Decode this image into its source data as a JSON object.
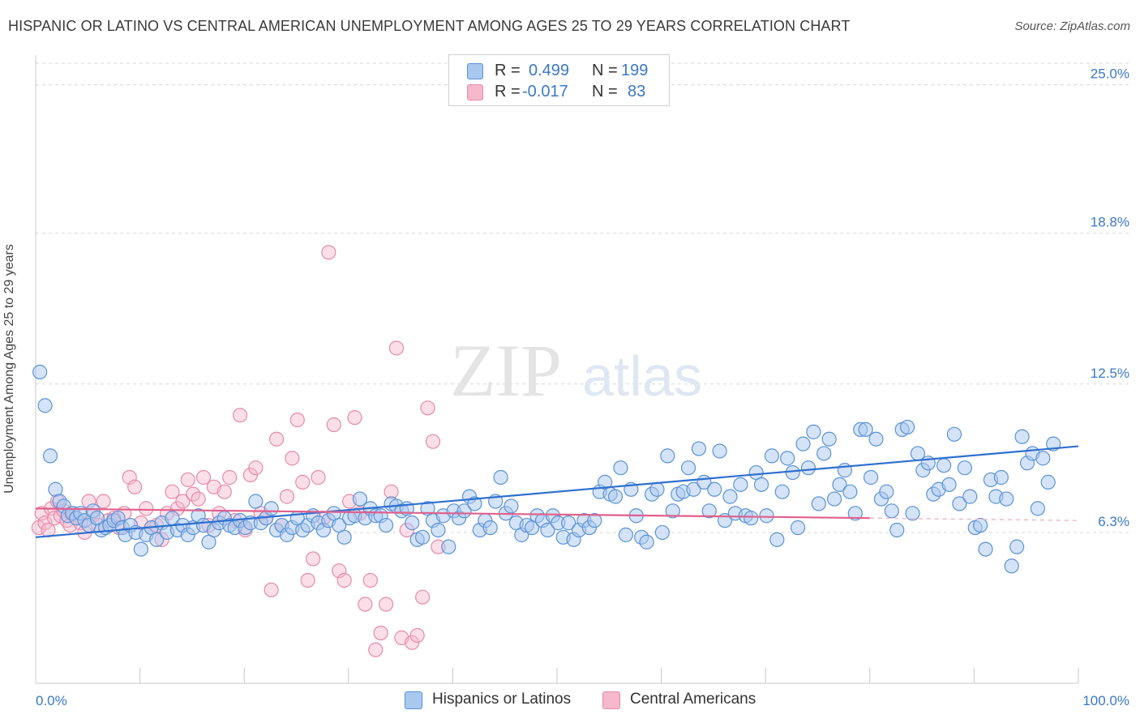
{
  "header": {
    "title": "HISPANIC OR LATINO VS CENTRAL AMERICAN UNEMPLOYMENT AMONG AGES 25 TO 29 YEARS CORRELATION CHART",
    "source": "Source: ZipAtlas.com"
  },
  "watermark": {
    "zip": "ZIP",
    "atlas": "atlas"
  },
  "stats": {
    "r_label": "R =",
    "n_label": "N =",
    "blue": {
      "r": "0.499",
      "n": "199",
      "color": "#a9c8ef"
    },
    "pink": {
      "r": "-0.017",
      "n": "83",
      "color": "#f6b8cb"
    }
  },
  "legend": {
    "blue_label": "Hispanics or Latinos",
    "pink_label": "Central Americans"
  },
  "colors": {
    "blue_fill": "#a9c8ef",
    "blue_stroke": "#5b93d6",
    "blue_line": "#2f6fcf",
    "pink_fill": "#f6b8cb",
    "pink_stroke": "#e68aa8",
    "pink_line": "#e0608c",
    "grid": "#d8d8d8",
    "tick_text": "#3a78c9"
  },
  "chart_data": {
    "type": "scatter",
    "title": "HISPANIC OR LATINO VS CENTRAL AMERICAN UNEMPLOYMENT AMONG AGES 25 TO 29 YEARS CORRELATION CHART",
    "xlabel": "",
    "ylabel": "Unemployment Among Ages 25 to 29 years",
    "xlim": [
      0,
      100
    ],
    "ylim": [
      0,
      25.9
    ],
    "x_tick_labels": [
      "0.0%",
      "100.0%"
    ],
    "y_ticks": [
      6.3,
      12.5,
      18.8,
      25.0
    ],
    "y_tick_labels": [
      "6.3%",
      "12.5%",
      "18.8%",
      "25.0%"
    ],
    "grid": true,
    "legend_position": "bottom-center",
    "series": [
      {
        "name": "Hispanics or Latinos",
        "trend": {
          "x": [
            0,
            100
          ],
          "y": [
            6.1,
            9.9
          ]
        },
        "points": [
          [
            0.4,
            13.0
          ],
          [
            0.9,
            11.6
          ],
          [
            1.4,
            9.5
          ],
          [
            1.9,
            8.1
          ],
          [
            2.3,
            7.6
          ],
          [
            2.7,
            7.4
          ],
          [
            3.1,
            7.0
          ],
          [
            3.5,
            7.1
          ],
          [
            3.9,
            6.9
          ],
          [
            4.3,
            7.1
          ],
          [
            4.7,
            6.8
          ],
          [
            5.1,
            6.6
          ],
          [
            5.5,
            7.2
          ],
          [
            5.9,
            6.9
          ],
          [
            6.3,
            6.4
          ],
          [
            6.7,
            6.5
          ],
          [
            7.1,
            6.6
          ],
          [
            7.5,
            6.8
          ],
          [
            7.9,
            6.9
          ],
          [
            8.3,
            6.5
          ],
          [
            8.6,
            6.2
          ],
          [
            9.1,
            6.6
          ],
          [
            9.6,
            6.3
          ],
          [
            10.1,
            5.6
          ],
          [
            10.6,
            6.2
          ],
          [
            11.1,
            6.5
          ],
          [
            11.6,
            6.0
          ],
          [
            12.1,
            6.7
          ],
          [
            12.6,
            6.3
          ],
          [
            13.1,
            6.9
          ],
          [
            13.6,
            6.4
          ],
          [
            14.1,
            6.6
          ],
          [
            14.6,
            6.2
          ],
          [
            15.1,
            6.5
          ],
          [
            15.6,
            7.0
          ],
          [
            16.1,
            6.6
          ],
          [
            16.6,
            5.9
          ],
          [
            17.1,
            6.4
          ],
          [
            17.6,
            6.7
          ],
          [
            18.1,
            6.9
          ],
          [
            18.6,
            6.6
          ],
          [
            19.1,
            6.5
          ],
          [
            19.6,
            6.8
          ],
          [
            20.1,
            6.5
          ],
          [
            20.6,
            6.7
          ],
          [
            21.1,
            7.6
          ],
          [
            21.6,
            6.7
          ],
          [
            22.1,
            6.9
          ],
          [
            22.6,
            7.3
          ],
          [
            23.1,
            6.4
          ],
          [
            23.6,
            6.6
          ],
          [
            24.1,
            6.2
          ],
          [
            24.6,
            6.5
          ],
          [
            25.1,
            6.9
          ],
          [
            25.6,
            6.4
          ],
          [
            26.1,
            6.6
          ],
          [
            26.6,
            7.0
          ],
          [
            27.1,
            6.7
          ],
          [
            27.6,
            6.4
          ],
          [
            28.1,
            6.8
          ],
          [
            28.6,
            7.1
          ],
          [
            29.1,
            6.6
          ],
          [
            29.6,
            6.1
          ],
          [
            30.1,
            6.9
          ],
          [
            30.6,
            7.0
          ],
          [
            31.1,
            7.7
          ],
          [
            31.6,
            6.9
          ],
          [
            32.1,
            7.3
          ],
          [
            32.6,
            7.0
          ],
          [
            33.1,
            7.0
          ],
          [
            33.6,
            6.6
          ],
          [
            34.1,
            7.5
          ],
          [
            34.6,
            7.4
          ],
          [
            35.1,
            7.2
          ],
          [
            35.6,
            7.3
          ],
          [
            36.1,
            6.7
          ],
          [
            36.6,
            6.0
          ],
          [
            37.1,
            6.1
          ],
          [
            37.6,
            7.3
          ],
          [
            38.1,
            6.8
          ],
          [
            38.6,
            6.4
          ],
          [
            39.1,
            7.0
          ],
          [
            39.6,
            5.7
          ],
          [
            40.1,
            7.2
          ],
          [
            40.6,
            6.9
          ],
          [
            41.1,
            7.2
          ],
          [
            41.6,
            7.8
          ],
          [
            42.1,
            7.5
          ],
          [
            42.6,
            6.4
          ],
          [
            43.1,
            6.8
          ],
          [
            43.6,
            6.5
          ],
          [
            44.1,
            7.6
          ],
          [
            44.6,
            8.6
          ],
          [
            45.1,
            7.1
          ],
          [
            45.6,
            7.4
          ],
          [
            46.1,
            6.7
          ],
          [
            46.6,
            6.2
          ],
          [
            47.1,
            6.6
          ],
          [
            47.6,
            6.5
          ],
          [
            48.1,
            7.0
          ],
          [
            48.6,
            6.8
          ],
          [
            49.1,
            6.4
          ],
          [
            49.6,
            7.0
          ],
          [
            50.1,
            6.7
          ],
          [
            50.6,
            6.1
          ],
          [
            51.1,
            6.7
          ],
          [
            51.6,
            6.0
          ],
          [
            52.1,
            6.4
          ],
          [
            52.6,
            6.8
          ],
          [
            53.1,
            6.5
          ],
          [
            53.6,
            6.8
          ],
          [
            54.1,
            8.0
          ],
          [
            54.6,
            8.4
          ],
          [
            55.1,
            7.9
          ],
          [
            55.6,
            7.8
          ],
          [
            56.1,
            9.0
          ],
          [
            56.6,
            6.2
          ],
          [
            57.1,
            8.1
          ],
          [
            57.6,
            7.0
          ],
          [
            58.1,
            6.1
          ],
          [
            58.6,
            5.9
          ],
          [
            59.1,
            7.9
          ],
          [
            59.6,
            8.1
          ],
          [
            60.1,
            6.3
          ],
          [
            60.6,
            9.5
          ],
          [
            61.1,
            7.2
          ],
          [
            61.6,
            7.9
          ],
          [
            62.1,
            8.0
          ],
          [
            62.6,
            9.0
          ],
          [
            63.1,
            8.1
          ],
          [
            63.6,
            9.8
          ],
          [
            64.1,
            8.4
          ],
          [
            64.6,
            7.2
          ],
          [
            65.1,
            8.1
          ],
          [
            65.6,
            9.7
          ],
          [
            66.1,
            6.8
          ],
          [
            66.6,
            7.8
          ],
          [
            67.1,
            7.1
          ],
          [
            67.6,
            8.3
          ],
          [
            68.1,
            7.0
          ],
          [
            68.6,
            6.9
          ],
          [
            69.1,
            8.8
          ],
          [
            69.6,
            8.3
          ],
          [
            70.1,
            7.0
          ],
          [
            70.6,
            9.5
          ],
          [
            71.1,
            6.0
          ],
          [
            71.6,
            8.0
          ],
          [
            72.1,
            9.4
          ],
          [
            72.6,
            8.8
          ],
          [
            73.1,
            6.5
          ],
          [
            73.6,
            10.0
          ],
          [
            74.1,
            9.0
          ],
          [
            74.6,
            10.5
          ],
          [
            75.1,
            7.5
          ],
          [
            75.6,
            9.6
          ],
          [
            76.1,
            10.2
          ],
          [
            76.6,
            7.7
          ],
          [
            77.1,
            8.3
          ],
          [
            77.6,
            8.9
          ],
          [
            78.1,
            8.0
          ],
          [
            78.6,
            7.1
          ],
          [
            79.1,
            10.6
          ],
          [
            79.6,
            10.6
          ],
          [
            80.1,
            8.6
          ],
          [
            80.6,
            10.2
          ],
          [
            81.1,
            7.7
          ],
          [
            81.6,
            8.0
          ],
          [
            82.1,
            7.2
          ],
          [
            82.6,
            6.4
          ],
          [
            83.1,
            10.6
          ],
          [
            83.6,
            10.7
          ],
          [
            84.1,
            7.1
          ],
          [
            84.6,
            9.6
          ],
          [
            85.1,
            8.9
          ],
          [
            85.6,
            9.2
          ],
          [
            86.1,
            7.9
          ],
          [
            86.6,
            8.1
          ],
          [
            87.1,
            9.1
          ],
          [
            87.6,
            8.3
          ],
          [
            88.1,
            10.4
          ],
          [
            88.6,
            7.5
          ],
          [
            89.1,
            9.0
          ],
          [
            89.6,
            7.8
          ],
          [
            90.1,
            6.5
          ],
          [
            90.6,
            6.6
          ],
          [
            91.1,
            5.6
          ],
          [
            91.6,
            8.5
          ],
          [
            92.1,
            7.8
          ],
          [
            92.6,
            8.6
          ],
          [
            93.1,
            7.7
          ],
          [
            93.6,
            4.9
          ],
          [
            94.1,
            5.7
          ],
          [
            94.6,
            10.3
          ],
          [
            95.1,
            9.2
          ],
          [
            95.6,
            9.6
          ],
          [
            96.1,
            7.3
          ],
          [
            96.6,
            9.4
          ],
          [
            97.1,
            8.4
          ],
          [
            97.6,
            10.0
          ]
        ]
      },
      {
        "name": "Central Americans",
        "trend": {
          "x": [
            0,
            80
          ],
          "y": [
            7.3,
            6.9
          ]
        },
        "points": [
          [
            0.3,
            6.5
          ],
          [
            0.6,
            7.1
          ],
          [
            0.9,
            6.7
          ],
          [
            1.2,
            6.4
          ],
          [
            1.5,
            7.3
          ],
          [
            1.8,
            6.9
          ],
          [
            2.1,
            7.6
          ],
          [
            2.4,
            7.0
          ],
          [
            2.7,
            7.2
          ],
          [
            3.0,
            6.8
          ],
          [
            3.3,
            6.6
          ],
          [
            3.6,
            7.1
          ],
          [
            3.9,
            6.9
          ],
          [
            4.3,
            6.7
          ],
          [
            4.7,
            6.3
          ],
          [
            5.1,
            7.6
          ],
          [
            5.5,
            7.0
          ],
          [
            6.0,
            6.6
          ],
          [
            6.5,
            7.6
          ],
          [
            7.0,
            6.8
          ],
          [
            7.5,
            6.9
          ],
          [
            8.0,
            6.5
          ],
          [
            8.5,
            7.1
          ],
          [
            9.0,
            8.6
          ],
          [
            9.5,
            8.2
          ],
          [
            10.1,
            6.7
          ],
          [
            10.6,
            7.3
          ],
          [
            11.1,
            6.5
          ],
          [
            11.6,
            6.6
          ],
          [
            12.1,
            6.0
          ],
          [
            12.6,
            7.1
          ],
          [
            13.1,
            8.0
          ],
          [
            13.6,
            7.3
          ],
          [
            14.1,
            7.6
          ],
          [
            14.6,
            8.5
          ],
          [
            15.1,
            7.9
          ],
          [
            15.6,
            7.7
          ],
          [
            16.1,
            8.6
          ],
          [
            16.6,
            6.6
          ],
          [
            17.1,
            8.2
          ],
          [
            17.6,
            7.1
          ],
          [
            18.1,
            8.0
          ],
          [
            18.6,
            8.6
          ],
          [
            19.1,
            6.8
          ],
          [
            19.6,
            11.2
          ],
          [
            20.1,
            6.4
          ],
          [
            20.6,
            8.7
          ],
          [
            21.1,
            9.0
          ],
          [
            21.6,
            7.1
          ],
          [
            22.1,
            6.9
          ],
          [
            22.6,
            3.9
          ],
          [
            23.1,
            10.2
          ],
          [
            23.6,
            6.6
          ],
          [
            24.1,
            7.8
          ],
          [
            24.6,
            9.4
          ],
          [
            25.1,
            11.0
          ],
          [
            25.6,
            8.4
          ],
          [
            26.1,
            4.3
          ],
          [
            26.6,
            5.2
          ],
          [
            27.1,
            8.6
          ],
          [
            27.6,
            6.9
          ],
          [
            28.1,
            18.0
          ],
          [
            28.6,
            10.8
          ],
          [
            29.1,
            4.7
          ],
          [
            29.6,
            4.3
          ],
          [
            30.1,
            7.6
          ],
          [
            30.6,
            11.1
          ],
          [
            31.1,
            7.1
          ],
          [
            31.6,
            3.3
          ],
          [
            32.1,
            4.3
          ],
          [
            32.6,
            1.4
          ],
          [
            33.1,
            2.1
          ],
          [
            33.6,
            3.3
          ],
          [
            34.1,
            8.0
          ],
          [
            34.6,
            14.0
          ],
          [
            35.1,
            1.9
          ],
          [
            35.6,
            6.4
          ],
          [
            36.1,
            1.7
          ],
          [
            36.6,
            2.0
          ],
          [
            37.1,
            3.6
          ],
          [
            37.6,
            11.5
          ],
          [
            38.1,
            10.1
          ],
          [
            38.6,
            5.7
          ]
        ]
      }
    ]
  }
}
